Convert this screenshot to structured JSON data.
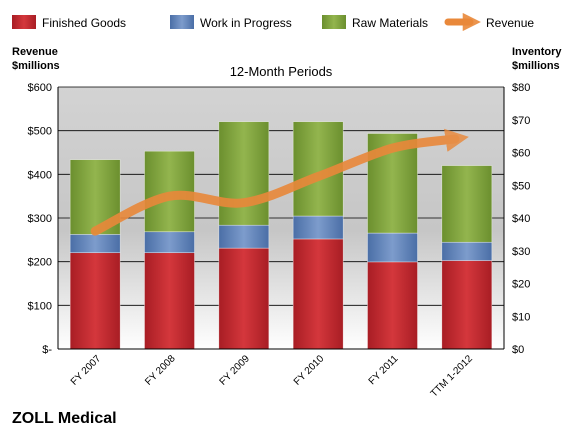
{
  "chart_data": {
    "type": "bar",
    "title": "12-Month Periods",
    "company": "ZOLL Medical",
    "categories": [
      "FY 2007",
      "FY 2008",
      "FY 2009",
      "FY 2010",
      "FY 2011",
      "TTM 1-2012"
    ],
    "stack_series": [
      {
        "name": "Finished Goods",
        "color": "#C0272D",
        "values": [
          29.4,
          29.4,
          30.8,
          33.6,
          26.6,
          27.0
        ]
      },
      {
        "name": "Work in Progress",
        "color": "#5B7FB8",
        "values": [
          5.6,
          6.4,
          7.0,
          7.0,
          8.8,
          5.6
        ]
      },
      {
        "name": "Raw Materials",
        "color": "#7FA33C",
        "values": [
          22.8,
          24.6,
          31.6,
          28.8,
          30.4,
          23.4
        ]
      }
    ],
    "line_series": {
      "name": "Revenue",
      "color": "#E9883A",
      "values": [
        270,
        350,
        335,
        395,
        460,
        485
      ]
    },
    "left_axis": {
      "label_line1": "Revenue",
      "label_line2": "$millions",
      "ylim": [
        0,
        600
      ],
      "ticks": [
        "$-",
        "$100",
        "$200",
        "$300",
        "$400",
        "$500",
        "$600"
      ]
    },
    "right_axis": {
      "label_line1": "Inventory",
      "label_line2": "$millions",
      "ylim": [
        0,
        80
      ],
      "ticks": [
        "$0",
        "$10",
        "$20",
        "$30",
        "$40",
        "$50",
        "$60",
        "$70",
        "$80"
      ]
    },
    "legend": {
      "position": "top"
    }
  }
}
